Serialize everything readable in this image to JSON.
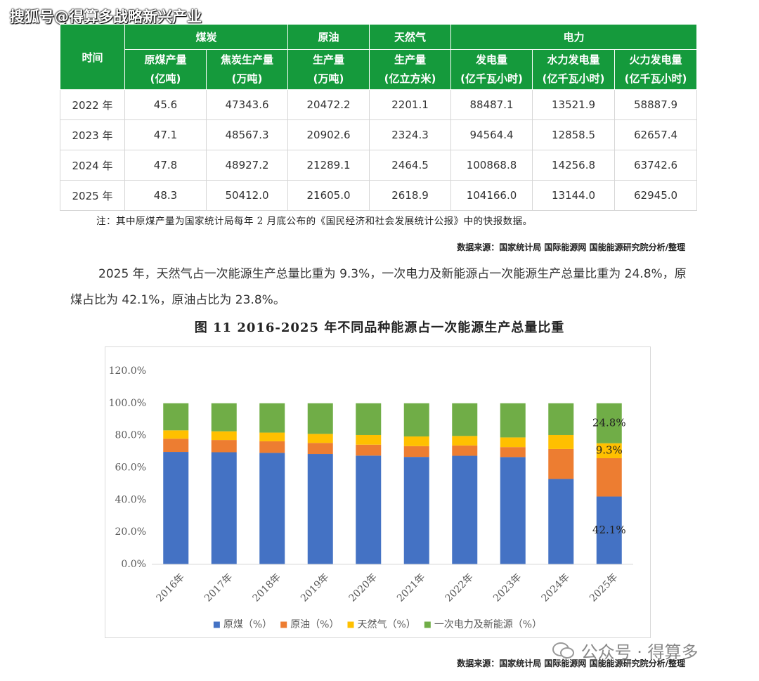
{
  "watermark_top": "搜狐号@得算多战略新兴产业",
  "table": {
    "corner": "时间",
    "groups": [
      "煤炭",
      "原油",
      "天然气",
      "电力"
    ],
    "columns": [
      {
        "name": "原煤产量",
        "unit": "(亿吨)"
      },
      {
        "name": "焦炭生产量",
        "unit": "(万吨)"
      },
      {
        "name": "生产量",
        "unit": "(万吨)"
      },
      {
        "name": "生产量",
        "unit": "(亿立方米)"
      },
      {
        "name": "发电量",
        "unit": "(亿千瓦小时)"
      },
      {
        "name": "水力发电量",
        "unit": "(亿千瓦小时)"
      },
      {
        "name": "火力发电量",
        "unit": "(亿千瓦小时)"
      }
    ],
    "rows": [
      [
        "2022 年",
        "45.6",
        "47343.6",
        "20472.2",
        "2201.1",
        "88487.1",
        "13521.9",
        "58887.9"
      ],
      [
        "2023 年",
        "47.1",
        "48567.3",
        "20902.6",
        "2324.3",
        "94564.4",
        "12858.5",
        "62657.4"
      ],
      [
        "2024 年",
        "47.8",
        "48927.2",
        "21289.1",
        "2464.5",
        "100868.8",
        "14256.8",
        "63742.6"
      ],
      [
        "2025 年",
        "48.3",
        "50412.0",
        "21605.0",
        "2618.9",
        "104166.0",
        "13144.0",
        "62945.0"
      ]
    ]
  },
  "table_note": "注：其中原煤产量为国家统计局每年 2 月底公布的《国民经济和社会发展统计公报》中的快报数据。",
  "source_1": "数据来源：国家统计局 国际能源网 国能能源研究院分析/整理",
  "paragraph": "2025 年，天然气占一次能源生产总量比重为 9.3%，一次电力及新能源占一次能源生产总量比重为 24.8%，原煤占比为 42.1%，原油占比为 23.8%。",
  "figure_title": "图 11 2016-2025 年不同品种能源占一次能源生产总量比重",
  "chart_data": {
    "type": "stacked_bar",
    "categories": [
      "2016年",
      "2017年",
      "2018年",
      "2019年",
      "2020年",
      "2021年",
      "2022年",
      "2023年",
      "2024年",
      "2025年"
    ],
    "series": [
      {
        "name": "原煤（%）",
        "color": "#4472c4",
        "values": [
          69.8,
          69.6,
          69.2,
          68.5,
          67.5,
          66.7,
          67.4,
          66.6,
          53.0,
          42.1
        ],
        "value_labels": [
          null,
          null,
          null,
          null,
          null,
          null,
          null,
          null,
          null,
          "42.1%"
        ]
      },
      {
        "name": "原油（%）",
        "color": "#ed7d31",
        "values": [
          8.2,
          7.6,
          7.2,
          6.9,
          6.8,
          6.7,
          6.4,
          6.2,
          18.6,
          23.8
        ]
      },
      {
        "name": "天然气（%）",
        "color": "#ffc000",
        "values": [
          5.2,
          5.4,
          5.4,
          5.6,
          6.0,
          6.0,
          5.9,
          6.0,
          8.7,
          9.3
        ],
        "value_labels": [
          null,
          null,
          null,
          null,
          null,
          null,
          null,
          null,
          null,
          "9.3%"
        ]
      },
      {
        "name": "一次电力及新能源（%）",
        "color": "#70ad47",
        "values": [
          16.8,
          17.4,
          18.2,
          19.0,
          19.7,
          20.6,
          20.3,
          21.2,
          19.7,
          24.8
        ],
        "value_labels": [
          null,
          null,
          null,
          null,
          null,
          null,
          null,
          null,
          null,
          "24.8%"
        ]
      }
    ],
    "ylim": [
      0,
      120
    ],
    "yticks": [
      {
        "value": 0,
        "label": "0.0%"
      },
      {
        "value": 20,
        "label": "20.0%"
      },
      {
        "value": 40,
        "label": "40.0%"
      },
      {
        "value": 60,
        "label": "60.0%"
      },
      {
        "value": 80,
        "label": "80.0%"
      },
      {
        "value": 100,
        "label": "100.0%"
      },
      {
        "value": 120,
        "label": "120.0%"
      }
    ],
    "grid": false,
    "legend": "bottom"
  },
  "source_2": "数据来源：国家统计局 国际能源网 国能能源研究院分析/整理",
  "watermark_bottom": "公众号 · 得算多"
}
